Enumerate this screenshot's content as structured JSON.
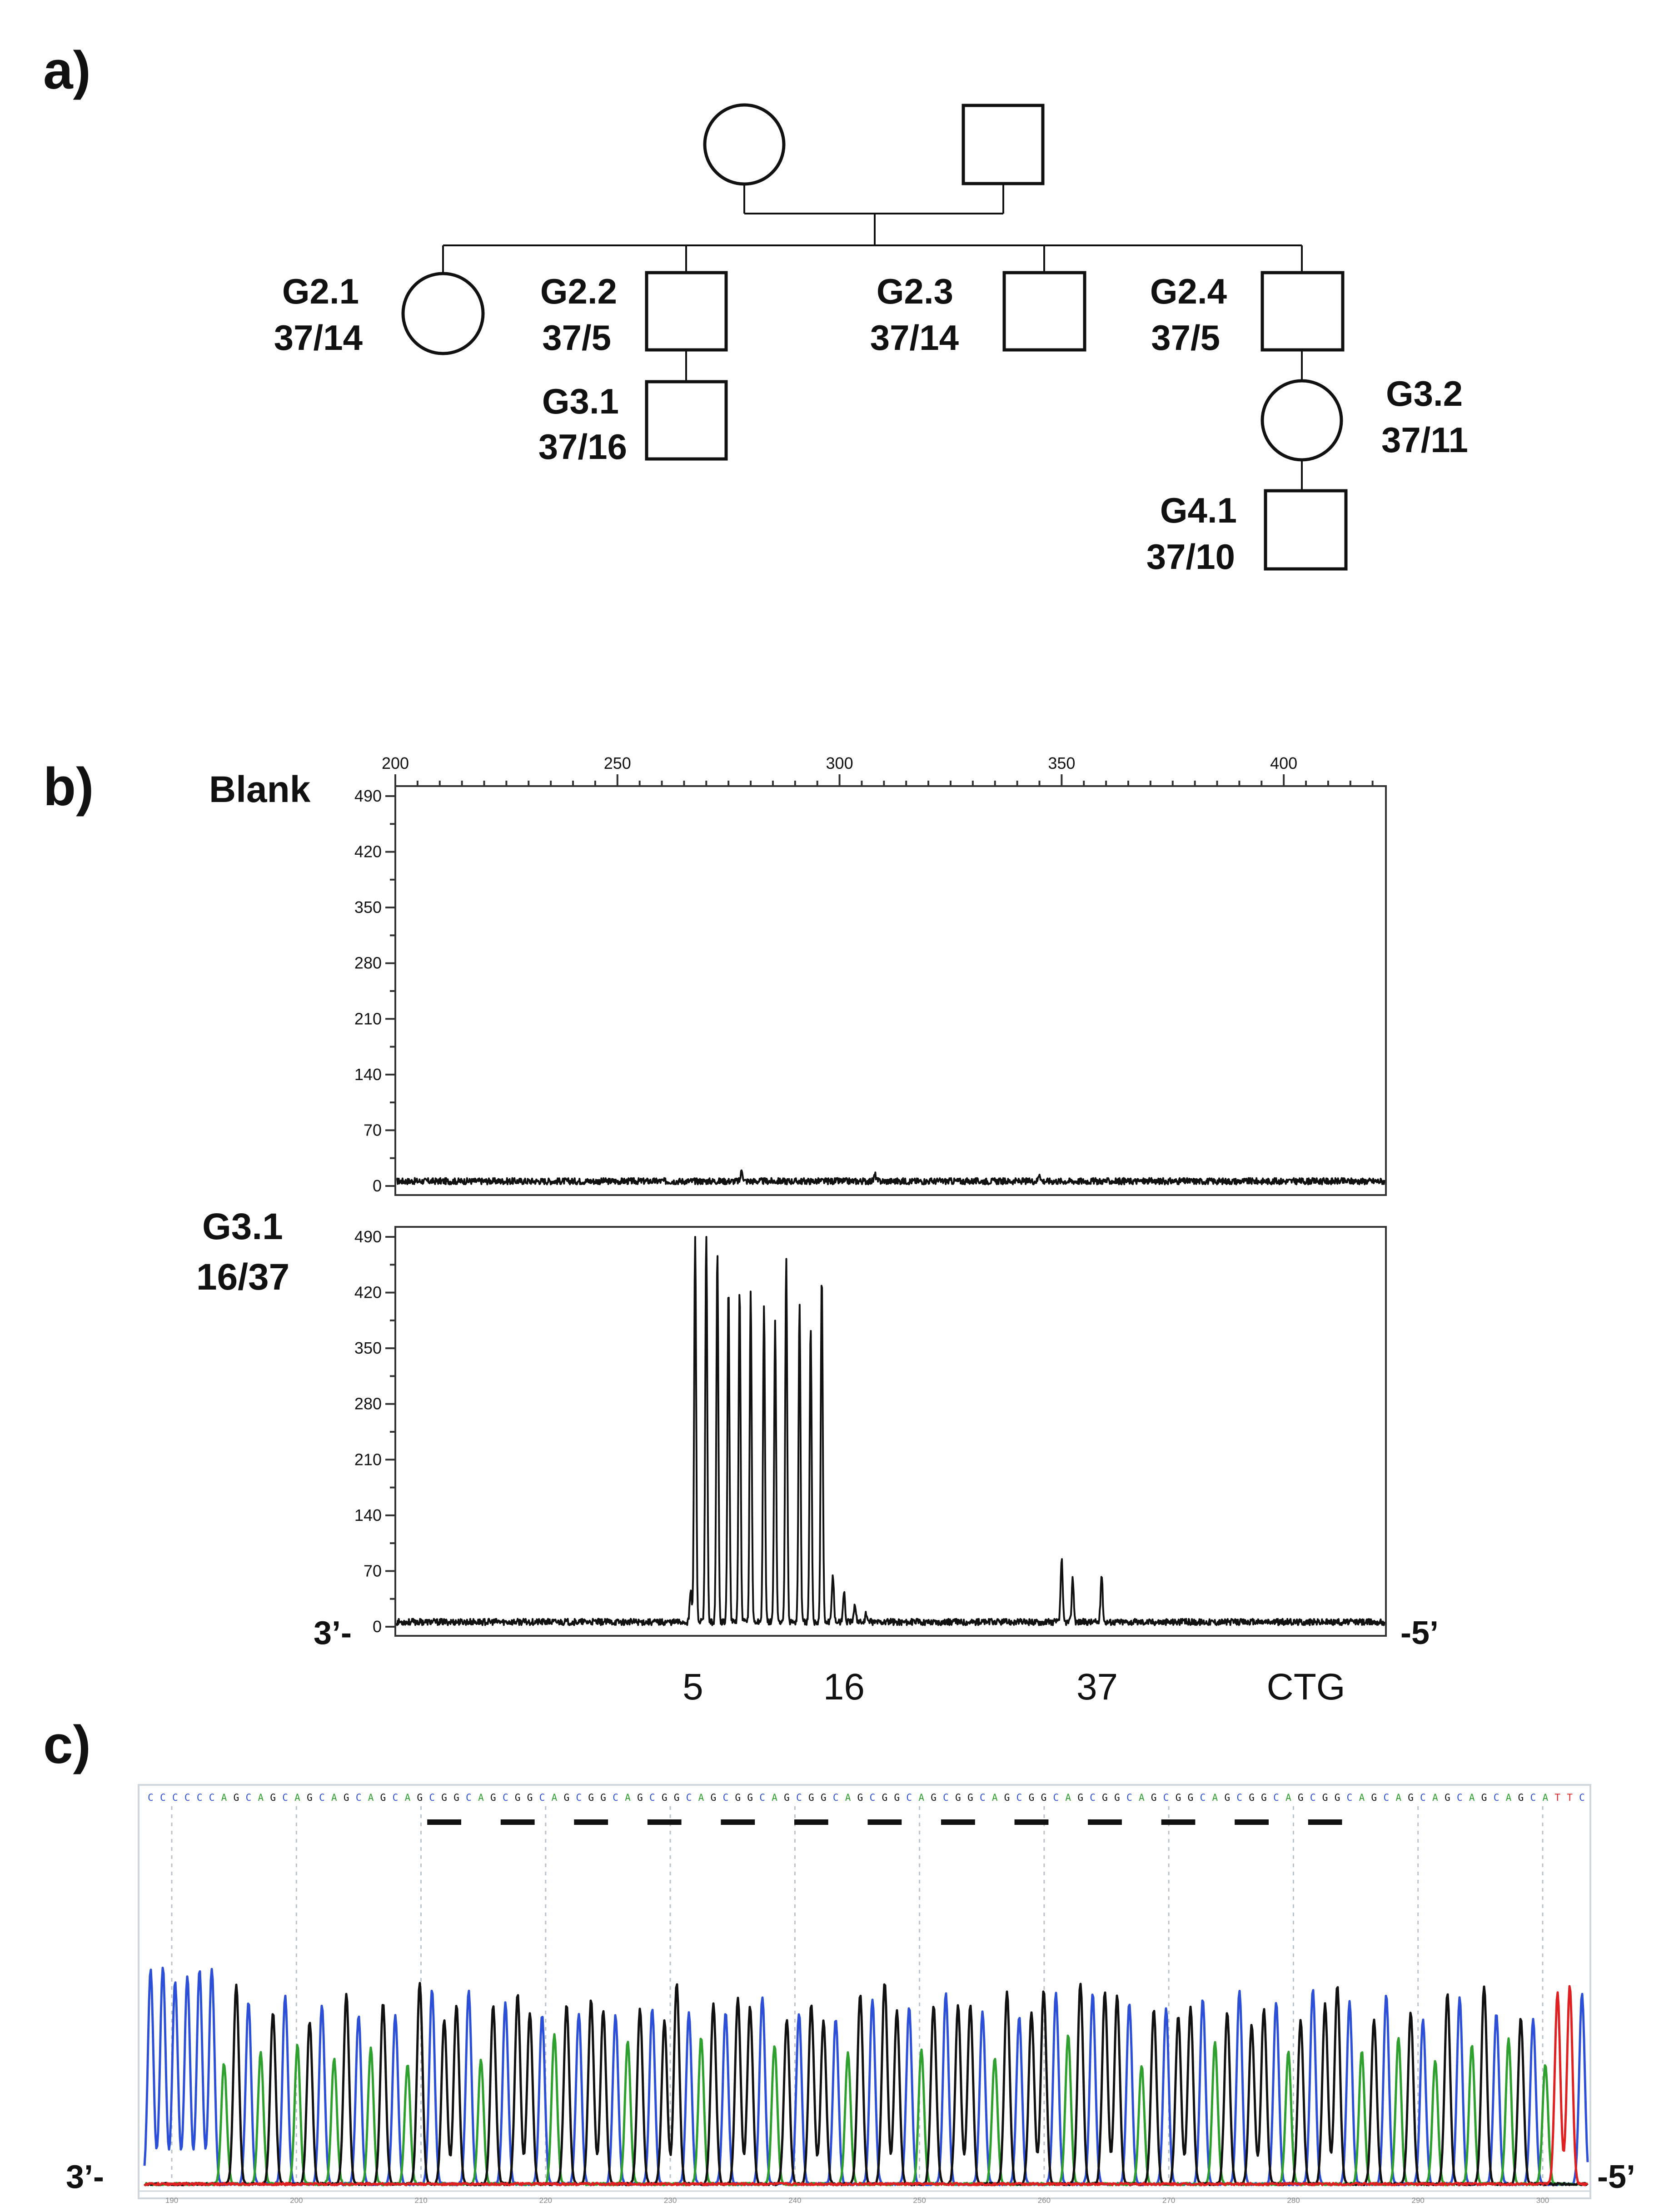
{
  "panels": {
    "a": {
      "letter": "a)",
      "individuals": [
        {
          "id": "G1-mother",
          "sex": "female",
          "label": "",
          "genotype": ""
        },
        {
          "id": "G1-father",
          "sex": "male",
          "label": "",
          "genotype": ""
        },
        {
          "id": "G2.1",
          "sex": "female",
          "label": "G2.1",
          "genotype": "37/14"
        },
        {
          "id": "G2.2",
          "sex": "male",
          "label": "G2.2",
          "genotype": "37/5"
        },
        {
          "id": "G2.3",
          "sex": "male",
          "label": "G2.3",
          "genotype": "37/14"
        },
        {
          "id": "G2.4",
          "sex": "male",
          "label": "G2.4",
          "genotype": "37/5"
        },
        {
          "id": "G3.1",
          "sex": "male",
          "label": "G3.1",
          "genotype": "37/16"
        },
        {
          "id": "G3.2",
          "sex": "female",
          "label": "G3.2",
          "genotype": "37/11"
        },
        {
          "id": "G4.1",
          "sex": "male",
          "label": "G4.1",
          "genotype": "37/10"
        }
      ]
    },
    "b": {
      "letter": "b)",
      "left_strand": "3’-",
      "right_strand": "-5’"
    },
    "c": {
      "letter": "c)",
      "left_strand": "3’-",
      "right_strand": "-5’",
      "sequence": "CCCCCCAGCAGCAGCAGCAGCAGCGGCAGCGGCAGCGGCAGCGGCAGCGGCAGCGGCAGCGGCAGCGGCAGCGGCAGCGGCAGCGGCAGCGGCAGCGGCAGCAGCAGCAGCAGCATTC",
      "base_colors": {
        "A": "#2ea02e",
        "C": "#2b4fd6",
        "G": "#111111",
        "T": "#e02020"
      },
      "position_ticks": [
        "190",
        "200",
        "210",
        "220",
        "230",
        "240",
        "250",
        "260",
        "270",
        "280",
        "290",
        "300"
      ]
    }
  },
  "chart_data": [
    {
      "type": "line",
      "title": "Blank",
      "xlabel": "",
      "ylabel": "",
      "x_ticks": [
        200,
        250,
        300,
        350,
        400
      ],
      "y_ticks": [
        0,
        70,
        140,
        210,
        280,
        350,
        420,
        490
      ],
      "xlim": [
        200,
        423
      ],
      "ylim": [
        0,
        490
      ],
      "grid": false,
      "series": [
        {
          "peaks": [
            [
              278,
              14
            ],
            [
              308,
              8
            ],
            [
              345,
              10
            ]
          ],
          "baseline": 6,
          "noise": 4
        }
      ]
    },
    {
      "type": "line",
      "title": "G3.1",
      "subtitle": "16/37",
      "xlabel": "",
      "ylabel": "",
      "x_ticks": [],
      "y_ticks": [
        0,
        70,
        140,
        210,
        280,
        350,
        420,
        490
      ],
      "xlim": [
        200,
        423
      ],
      "ylim": [
        0,
        490
      ],
      "grid": false,
      "category_labels": [
        {
          "x": 267,
          "text": "5"
        },
        {
          "x": 301,
          "text": "16"
        },
        {
          "x": 358,
          "text": "37"
        },
        {
          "x": 405,
          "text": "CTG"
        }
      ],
      "series": [
        {
          "peaks": [
            [
              266.5,
              40
            ],
            [
              267.5,
              490
            ],
            [
              270,
              490
            ],
            [
              272.5,
              465
            ],
            [
              275,
              420
            ],
            [
              277.5,
              418
            ],
            [
              280,
              415
            ],
            [
              283,
              395
            ],
            [
              285.5,
              378
            ],
            [
              288,
              458
            ],
            [
              291,
              397
            ],
            [
              293.5,
              372
            ],
            [
              296,
              435
            ],
            [
              298.5,
              60
            ],
            [
              301,
              38
            ],
            [
              303.5,
              22
            ],
            [
              306,
              10
            ],
            [
              350,
              78
            ],
            [
              352.5,
              55
            ],
            [
              359,
              60
            ]
          ],
          "baseline": 6,
          "noise": 4
        }
      ]
    }
  ]
}
